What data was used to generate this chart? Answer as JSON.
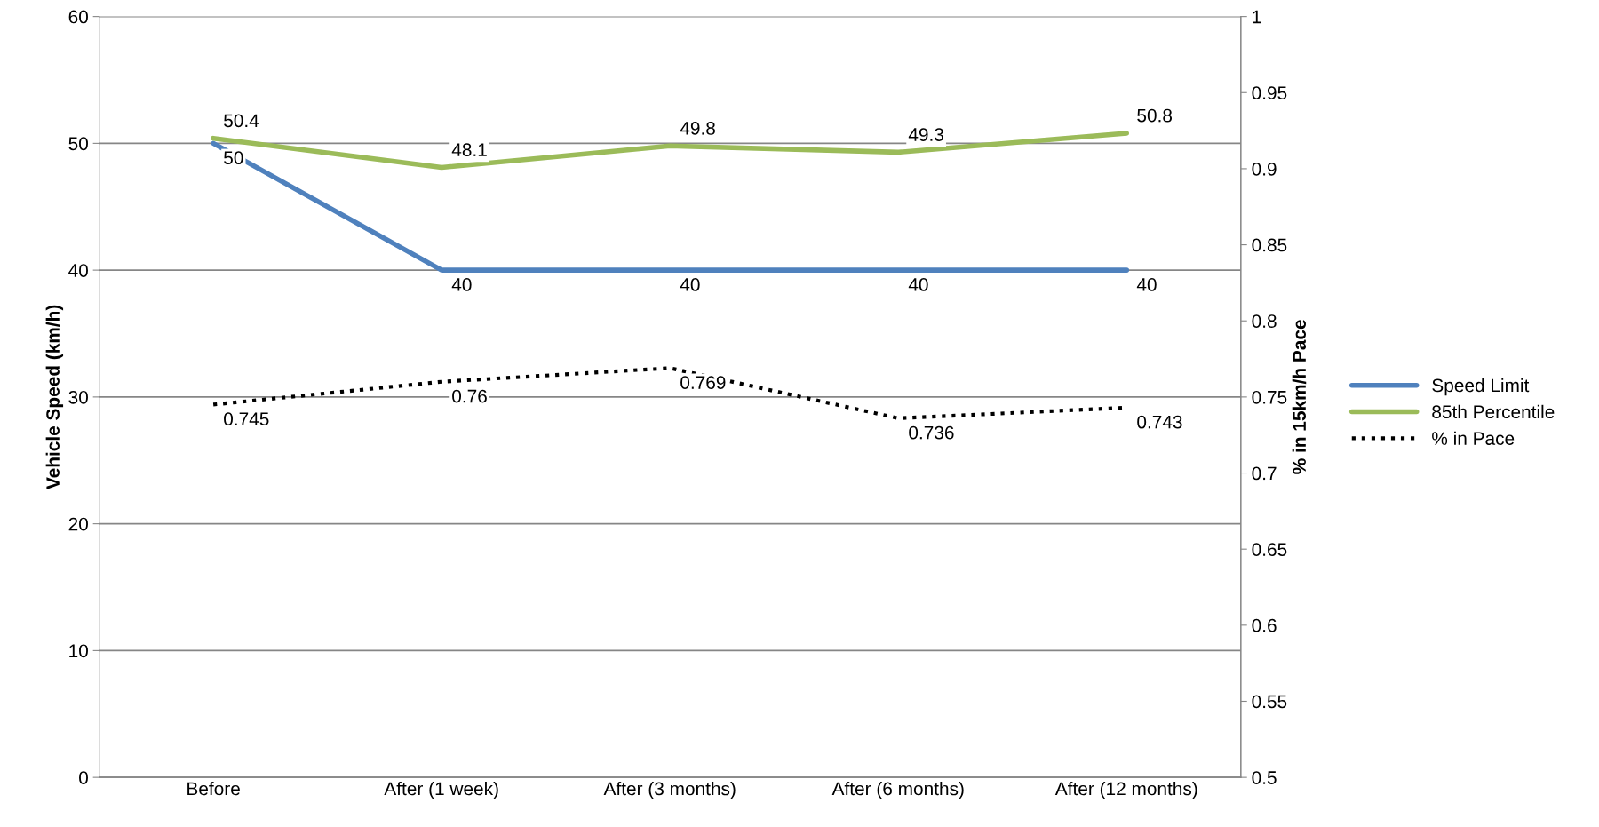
{
  "chart_data": {
    "type": "line",
    "ylabel": "Vehicle Speed (km/h)",
    "y2label": "% in 15km/h Pace",
    "categories": [
      "Before",
      "After (1 week)",
      "After (3 months)",
      "After (6 months)",
      "After (12 months)"
    ],
    "series": [
      {
        "name": "Speed Limit",
        "color": "#4f81bd",
        "values": [
          50,
          40,
          40,
          40,
          40
        ]
      },
      {
        "name": "85th Percentile",
        "color": "#9bbb59",
        "values": [
          50.4,
          48.1,
          49.8,
          49.3,
          50.8
        ]
      },
      {
        "name": "% in Pace",
        "color": "#000000",
        "values": [
          0.745,
          0.76,
          0.769,
          0.736,
          0.743
        ],
        "axis": "y2",
        "line_style": "dotted"
      }
    ],
    "ylim": [
      0,
      60
    ],
    "yticks": [
      0,
      10,
      20,
      30,
      40,
      50,
      60
    ],
    "y2lim": [
      0.5,
      1
    ],
    "y2ticks": [
      0.5,
      0.55,
      0.6,
      0.65,
      0.7,
      0.75,
      0.8,
      0.85,
      0.9,
      0.95,
      1
    ],
    "grid": "y",
    "legend": "right",
    "data_labels": true,
    "marker": "none",
    "line_style": "solid"
  }
}
